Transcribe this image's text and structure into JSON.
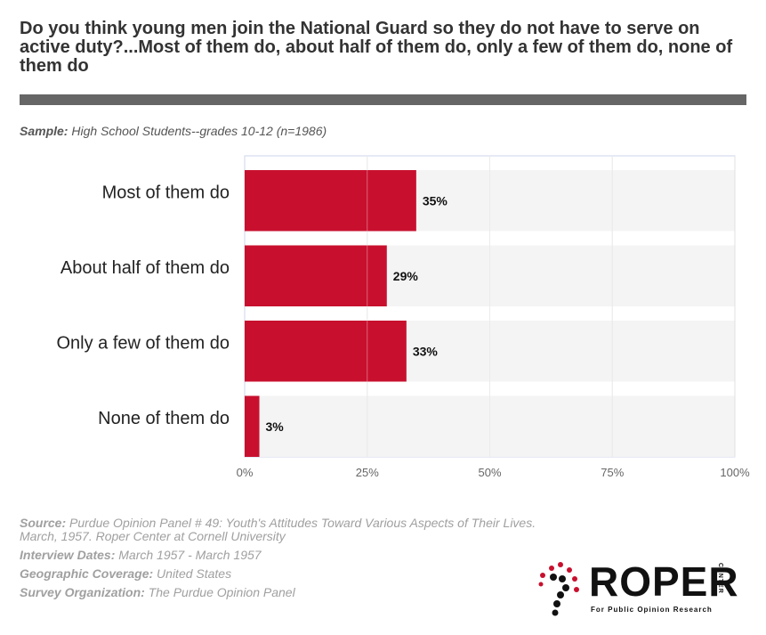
{
  "title": "Do you think young men join the National Guard so they do not have to serve on active duty?...Most of them do, about half of them do, only a few of them do, none of them do",
  "sample": {
    "label": "Sample:",
    "value": "High School Students--grades 10-12 (n=1986)"
  },
  "chart_data": {
    "type": "bar",
    "orientation": "horizontal",
    "categories": [
      "Most of them do",
      "About half of them do",
      "Only a few of them do",
      "None of them do"
    ],
    "values": [
      35,
      29,
      33,
      3
    ],
    "value_labels": [
      "35%",
      "29%",
      "33%",
      "3%"
    ],
    "xlim": [
      0,
      100
    ],
    "ticks": [
      "0%",
      "25%",
      "50%",
      "75%",
      "100%"
    ],
    "tick_values": [
      0,
      25,
      50,
      75,
      100
    ],
    "grid": true,
    "bar_color": "#c8102e",
    "row_band_color": "#f4f4f4"
  },
  "meta": {
    "source": {
      "label": "Source:",
      "value": "Purdue Opinion Panel # 49: Youth's Attitudes Toward Various Aspects of Their Lives. March, 1957. Roper Center at Cornell University"
    },
    "interview_dates": {
      "label": "Interview Dates:",
      "value": "March 1957 - March 1957"
    },
    "geographic_coverage": {
      "label": "Geographic Coverage:",
      "value": "United States"
    },
    "survey_organization": {
      "label": "Survey Organization:",
      "value": "The Purdue Opinion Panel"
    }
  },
  "logo": {
    "word": "ROPER",
    "side_text": "CENTER",
    "tagline": "For Public Opinion Research"
  }
}
